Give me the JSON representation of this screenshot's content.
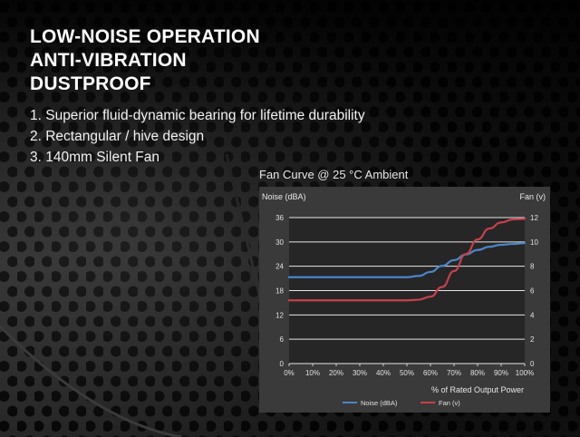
{
  "headlines": [
    "LOW-NOISE OPERATION",
    "ANTI-VIBRATION",
    "DUSTPROOF"
  ],
  "features": [
    "1. Superior fluid-dynamic bearing for lifetime durability",
    "2. Rectangular / hive design",
    "3. 140mm Silent Fan"
  ],
  "colors": {
    "noise_line": "#4a86c8",
    "fan_line": "#c8404a",
    "panel": "#3a3a3a"
  },
  "chart_data": {
    "type": "line",
    "title": "Fan Curve @ 25 °C Ambient",
    "xlabel": "% of Rated Output Power",
    "ylabel_left": "Noise (dBA)",
    "ylabel_right": "Fan (v)",
    "x_ticks": [
      "0%",
      "10%",
      "20%",
      "30%",
      "40%",
      "50%",
      "60%",
      "70%",
      "80%",
      "90%",
      "100%"
    ],
    "y_left_ticks": [
      "0",
      "6",
      "12",
      "18",
      "24",
      "30",
      "36"
    ],
    "y_right_ticks": [
      "0",
      "2",
      "4",
      "6",
      "8",
      "10",
      "12"
    ],
    "ylim_left": [
      0,
      36
    ],
    "ylim_right": [
      0,
      12
    ],
    "grid": true,
    "legend_position": "bottom",
    "series": [
      {
        "name": "Noise (dBA)",
        "axis": "left",
        "x": [
          0,
          10,
          20,
          30,
          40,
          50,
          55,
          60,
          65,
          70,
          75,
          80,
          85,
          90,
          95,
          100
        ],
        "y": [
          21.3,
          21.3,
          21.3,
          21.3,
          21.3,
          21.3,
          21.6,
          22.6,
          24.1,
          25.5,
          26.9,
          28.0,
          28.8,
          29.3,
          29.5,
          29.7
        ]
      },
      {
        "name": "Fan (v)",
        "axis": "right",
        "x": [
          0,
          10,
          20,
          30,
          40,
          50,
          55,
          60,
          65,
          70,
          75,
          80,
          85,
          90,
          95,
          100
        ],
        "y": [
          5.2,
          5.2,
          5.2,
          5.2,
          5.2,
          5.2,
          5.25,
          5.5,
          6.3,
          7.6,
          9.0,
          10.2,
          11.1,
          11.6,
          11.85,
          11.9
        ]
      }
    ]
  }
}
